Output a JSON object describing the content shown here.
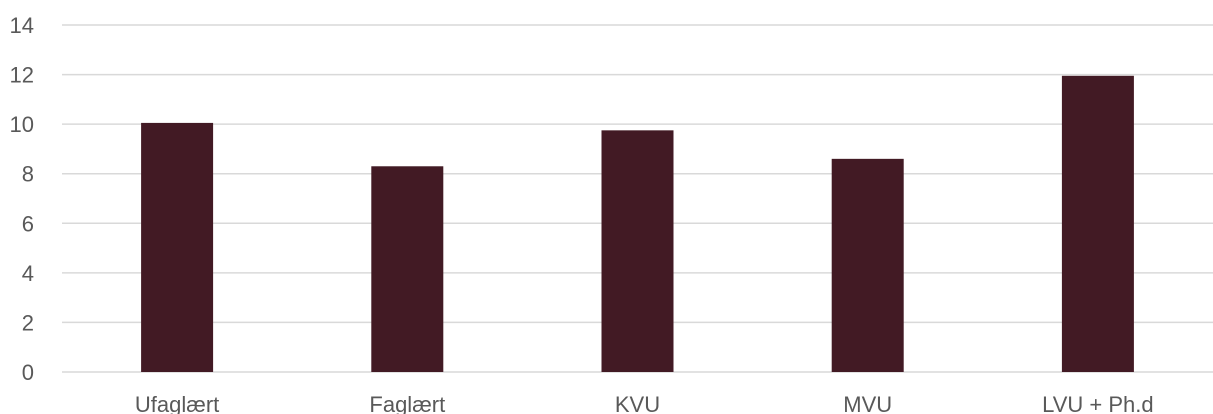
{
  "chart_data": {
    "type": "bar",
    "categories": [
      "Ufaglært",
      "Faglært",
      "KVU",
      "MVU",
      "LVU + Ph.d"
    ],
    "values": [
      10.05,
      8.3,
      9.75,
      8.6,
      11.95
    ],
    "ylim": [
      0,
      14
    ],
    "yticks": [
      0,
      2,
      4,
      6,
      8,
      10,
      12,
      14
    ],
    "grid": true,
    "legend": "none",
    "bar_color": "#421a24",
    "grid_color": "#d9d9d9",
    "text_color": "#595959"
  }
}
